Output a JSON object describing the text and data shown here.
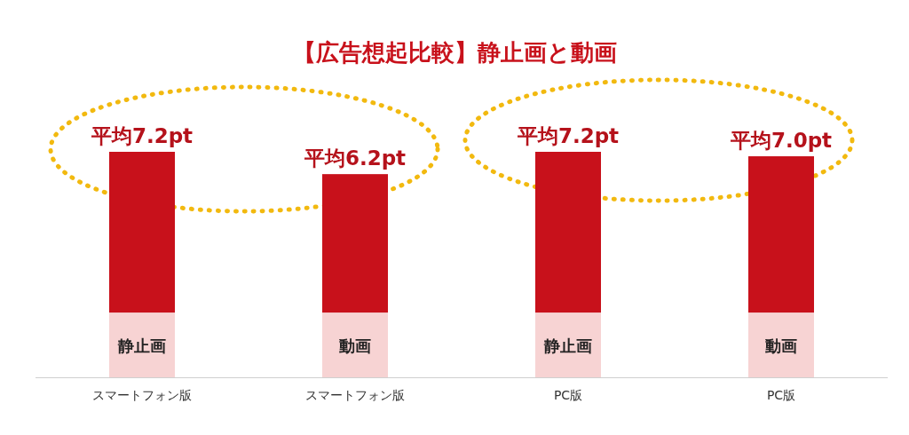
{
  "chart_data": {
    "type": "bar",
    "title": "【広告想起比較】静止画と動画",
    "stacked": true,
    "ylim": [
      0,
      10.1
    ],
    "categories": [
      "スマートフォン版",
      "スマートフォン版",
      "PC版",
      "PC版"
    ],
    "series": [
      {
        "color": "#f7d3d3",
        "values": [
          2.9,
          2.9,
          2.9,
          2.9
        ],
        "value_labels": [
          "静止画",
          "動画",
          "静止画",
          "動画"
        ]
      },
      {
        "color": "#c8111b",
        "values": [
          7.2,
          6.2,
          7.2,
          7.0
        ],
        "value_labels": [
          "平均7.2pt",
          "平均6.2pt",
          "平均7.2pt",
          "平均7.0pt"
        ]
      }
    ]
  }
}
